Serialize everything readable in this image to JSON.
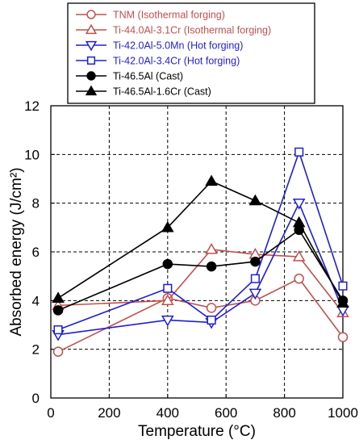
{
  "chart_data": {
    "type": "line",
    "xlabel": "Temperature (°C)",
    "ylabel": "Absorbed energy (J/cm²)",
    "xlim": [
      0,
      1000
    ],
    "ylim": [
      0,
      12
    ],
    "xticks": [
      "0",
      "200",
      "400",
      "600",
      "800",
      "1000"
    ],
    "yticks": [
      "0",
      "2",
      "4",
      "6",
      "8",
      "10",
      "12"
    ],
    "grid": "dashed",
    "legend_position": "top",
    "series": [
      {
        "name": "TNM (Isothermal forging)",
        "color": "#c0504d",
        "marker": "circle-open",
        "x": [
          25,
          400,
          550,
          700,
          850,
          1000
        ],
        "y": [
          1.9,
          4.1,
          3.7,
          4.0,
          4.9,
          2.5
        ]
      },
      {
        "name": "Ti-44.0Al-3.1Cr (Isothermal forging)",
        "color": "#c0504d",
        "marker": "triangle-up-open",
        "x": [
          25,
          400,
          550,
          700,
          850,
          1000
        ],
        "y": [
          3.8,
          4.0,
          6.1,
          5.9,
          5.8,
          3.5
        ]
      },
      {
        "name": "Ti-42.0Al-5.0Mn (Hot forging)",
        "color": "#1f1fd0",
        "marker": "triangle-down-open",
        "x": [
          25,
          400,
          550,
          700,
          850,
          1000
        ],
        "y": [
          2.6,
          3.2,
          3.1,
          4.3,
          8.0,
          3.6
        ]
      },
      {
        "name": "Ti-42.0Al-3.4Cr (Hot forging)",
        "color": "#1f1fd0",
        "marker": "square-open",
        "x": [
          25,
          400,
          550,
          700,
          850,
          1000
        ],
        "y": [
          2.8,
          4.5,
          3.2,
          4.9,
          10.1,
          4.6
        ]
      },
      {
        "name": "Ti-46.5Al (Cast)",
        "color": "#000000",
        "marker": "circle-filled",
        "x": [
          25,
          400,
          550,
          700,
          850,
          1000
        ],
        "y": [
          3.6,
          5.5,
          5.4,
          5.6,
          6.9,
          4.0
        ]
      },
      {
        "name": "Ti-46.5Al-1.6Cr (Cast)",
        "color": "#000000",
        "marker": "triangle-up-filled",
        "x": [
          25,
          400,
          550,
          700,
          850,
          1000
        ],
        "y": [
          4.1,
          7.0,
          8.9,
          8.1,
          7.2,
          3.9
        ]
      }
    ]
  }
}
